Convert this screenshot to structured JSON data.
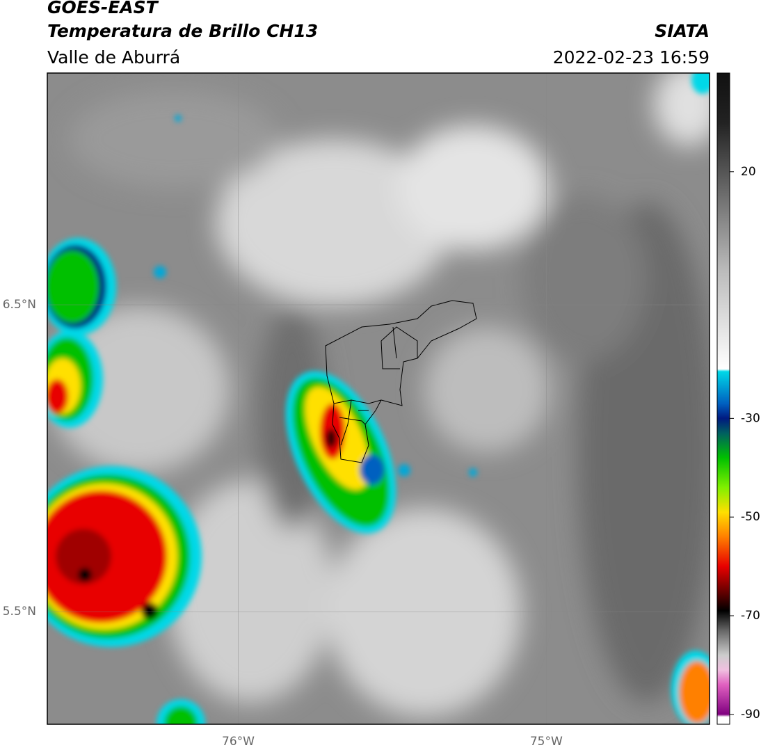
{
  "header": {
    "title": "GOES-EAST",
    "subtitle": "Temperatura de Brillo CH13",
    "region": "Valle de Aburrá",
    "source": "SIATA",
    "datetime": "2022-02-23 16:59"
  },
  "map": {
    "xlim": [
      -76.62,
      -74.47
    ],
    "ylim": [
      5.133,
      7.255
    ],
    "xticks": [
      {
        "value": -76,
        "label": "76°W"
      },
      {
        "value": -75,
        "label": "75°W"
      }
    ],
    "yticks": [
      {
        "value": 6.5,
        "label": "6.5°N"
      },
      {
        "value": 5.5,
        "label": "5.5°N"
      }
    ],
    "grid": true
  },
  "colorbar": {
    "range": [
      -92,
      40
    ],
    "ticks": [
      20,
      -30,
      -50,
      -70,
      -90
    ],
    "colormap": [
      {
        "value": 40,
        "color": "#111111"
      },
      {
        "value": 30,
        "color": "#222222"
      },
      {
        "value": 20,
        "color": "#555555"
      },
      {
        "value": 10,
        "color": "#888888"
      },
      {
        "value": 0,
        "color": "#bbbbbb"
      },
      {
        "value": -15,
        "color": "#eeeeee"
      },
      {
        "value": -20,
        "color": "#ffffff"
      },
      {
        "value": -20.5,
        "color": "#00d8e8"
      },
      {
        "value": -27,
        "color": "#0060c0"
      },
      {
        "value": -30,
        "color": "#001a80"
      },
      {
        "value": -33,
        "color": "#006060"
      },
      {
        "value": -38,
        "color": "#00c000"
      },
      {
        "value": -44,
        "color": "#80f000"
      },
      {
        "value": -49,
        "color": "#ffe000"
      },
      {
        "value": -54,
        "color": "#ff8000"
      },
      {
        "value": -60,
        "color": "#e80000"
      },
      {
        "value": -66,
        "color": "#500000"
      },
      {
        "value": -69,
        "color": "#000000"
      },
      {
        "value": -73,
        "color": "#666666"
      },
      {
        "value": -78,
        "color": "#cccccc"
      },
      {
        "value": -81,
        "color": "#f0c0e0"
      },
      {
        "value": -84,
        "color": "#e060c0"
      },
      {
        "value": -90,
        "color": "#800080"
      },
      {
        "value": -90.5,
        "color": "#ffffff"
      },
      {
        "value": -92,
        "color": "#ffffff"
      }
    ]
  }
}
